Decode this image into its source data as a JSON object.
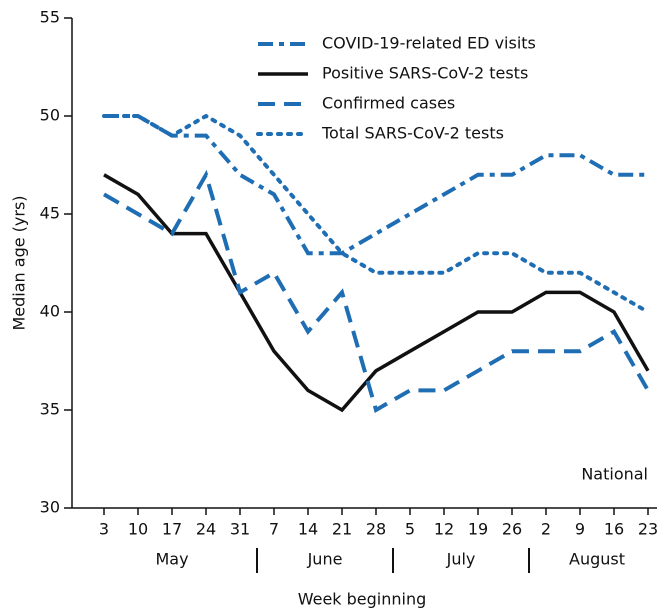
{
  "chart_data": {
    "type": "line",
    "y_label": "Median age (yrs)",
    "x_label": "Week beginning",
    "annotation": "National",
    "groups": [
      {
        "name": "May",
        "categories": [
          "3",
          "10",
          "17",
          "24",
          "31"
        ]
      },
      {
        "name": "June",
        "categories": [
          "7",
          "14",
          "21",
          "28"
        ]
      },
      {
        "name": "July",
        "categories": [
          "5",
          "12",
          "19",
          "26"
        ]
      },
      {
        "name": "August",
        "categories": [
          "2",
          "9",
          "16",
          "23"
        ]
      }
    ],
    "series": [
      {
        "name": "COVID-19-related ED visits",
        "color": "#1f6eb4",
        "style": "dash-dot",
        "values": [
          50,
          50,
          49,
          49,
          47,
          46,
          43,
          43,
          44,
          45,
          46,
          47,
          47,
          48,
          48,
          47,
          47
        ]
      },
      {
        "name": "Positive SARS-CoV-2 tests",
        "color": "#111111",
        "style": "solid",
        "values": [
          47,
          46,
          44,
          44,
          41,
          38,
          36,
          35,
          37,
          38,
          39,
          40,
          40,
          41,
          41,
          40,
          37
        ]
      },
      {
        "name": "Confirmed cases",
        "color": "#1f6eb4",
        "style": "dashed",
        "values": [
          46,
          45,
          44,
          47,
          41,
          42,
          39,
          41,
          35,
          36,
          36,
          37,
          38,
          38,
          38,
          39,
          36
        ]
      },
      {
        "name": "Total SARS-CoV-2 tests",
        "color": "#1f6eb4",
        "style": "dotted",
        "values": [
          50,
          50,
          49,
          50,
          49,
          47,
          45,
          43,
          42,
          42,
          42,
          43,
          43,
          42,
          42,
          41,
          40
        ]
      }
    ],
    "ylim": [
      30,
      55
    ],
    "yticks": [
      30,
      35,
      40,
      45,
      50,
      55
    ],
    "grid": false
  }
}
